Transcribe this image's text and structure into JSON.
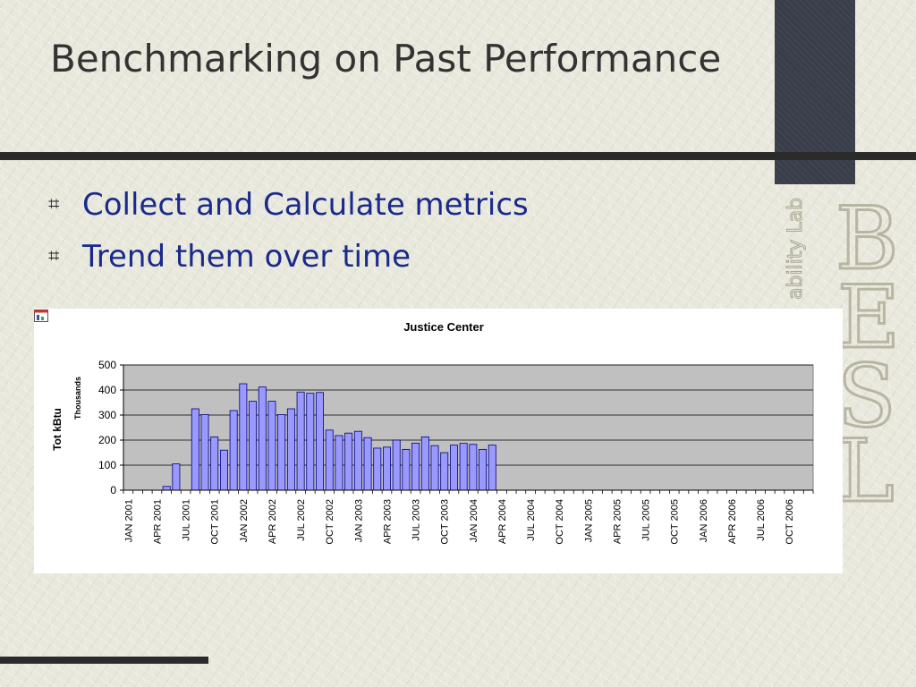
{
  "slide": {
    "title": "Benchmarking on Past Performance",
    "bullets": [
      {
        "icon": "hash-bullet-icon",
        "text": "Collect and Calculate metrics"
      },
      {
        "icon": "hash-bullet-icon",
        "text": "Trend them over time"
      }
    ],
    "logo": {
      "letters": [
        "B",
        "E",
        "S",
        "L"
      ],
      "side_text": "ability Lab"
    },
    "colors": {
      "title": "#333333",
      "bullet_text": "#1a2a8c",
      "bar_fill": "#9999ff",
      "bar_stroke": "#000080",
      "plot_bg": "#c0c0c0"
    }
  },
  "chart_data": {
    "type": "bar",
    "title": "Justice Center",
    "ylabel": "Tot kBtu",
    "yunit": "Thousands",
    "ylim": [
      0,
      500
    ],
    "yticks": [
      0,
      100,
      200,
      300,
      400,
      500
    ],
    "grid": true,
    "x_tick_labels": [
      "JAN 2001",
      "APR 2001",
      "JUL 2001",
      "OCT 2001",
      "JAN 2002",
      "APR 2002",
      "JUL 2002",
      "OCT 2002",
      "JAN 2003",
      "APR 2003",
      "JUL 2003",
      "OCT 2003",
      "JAN 2004",
      "APR 2004",
      "JUL 2004",
      "OCT 2004",
      "JAN 2005",
      "APR 2005",
      "JUL 2005",
      "OCT 2005",
      "JAN 2006",
      "APR 2006",
      "JUL 2006",
      "OCT 2006"
    ],
    "categories": [
      "JAN 2001",
      "FEB 2001",
      "MAR 2001",
      "APR 2001",
      "MAY 2001",
      "JUN 2001",
      "JUL 2001",
      "AUG 2001",
      "SEP 2001",
      "OCT 2001",
      "NOV 2001",
      "DEC 2001",
      "JAN 2002",
      "FEB 2002",
      "MAR 2002",
      "APR 2002",
      "MAY 2002",
      "JUN 2002",
      "JUL 2002",
      "AUG 2002",
      "SEP 2002",
      "OCT 2002",
      "NOV 2002",
      "DEC 2002",
      "JAN 2003",
      "FEB 2003",
      "MAR 2003",
      "APR 2003",
      "MAY 2003",
      "JUN 2003",
      "JUL 2003",
      "AUG 2003",
      "SEP 2003",
      "OCT 2003",
      "NOV 2003",
      "DEC 2003",
      "JAN 2004",
      "FEB 2004",
      "MAR 2004",
      "APR 2004",
      "MAY 2004",
      "JUN 2004",
      "JUL 2004",
      "AUG 2004",
      "SEP 2004",
      "OCT 2004",
      "NOV 2004",
      "DEC 2004",
      "JAN 2005",
      "FEB 2005",
      "MAR 2005",
      "APR 2005",
      "MAY 2005",
      "JUN 2005",
      "JUL 2005",
      "AUG 2005",
      "SEP 2005",
      "OCT 2005",
      "NOV 2005",
      "DEC 2005",
      "JAN 2006",
      "FEB 2006",
      "MAR 2006",
      "APR 2006",
      "MAY 2006",
      "JUN 2006",
      "JUL 2006",
      "AUG 2006",
      "SEP 2006",
      "OCT 2006",
      "NOV 2006",
      "DEC 2006"
    ],
    "values": [
      0,
      0,
      0,
      0,
      15,
      105,
      0,
      325,
      302,
      213,
      160,
      318,
      425,
      355,
      412,
      355,
      302,
      325,
      392,
      387,
      390,
      240,
      218,
      228,
      235,
      210,
      168,
      172,
      200,
      163,
      188,
      213,
      178,
      150,
      180,
      187,
      183,
      163,
      180,
      0,
      0,
      0,
      0,
      0,
      0,
      0,
      0,
      0,
      0,
      0,
      0,
      0,
      0,
      0,
      0,
      0,
      0,
      0,
      0,
      0,
      0,
      0,
      0,
      0,
      0,
      0,
      0,
      0,
      0,
      0,
      0,
      0
    ]
  }
}
